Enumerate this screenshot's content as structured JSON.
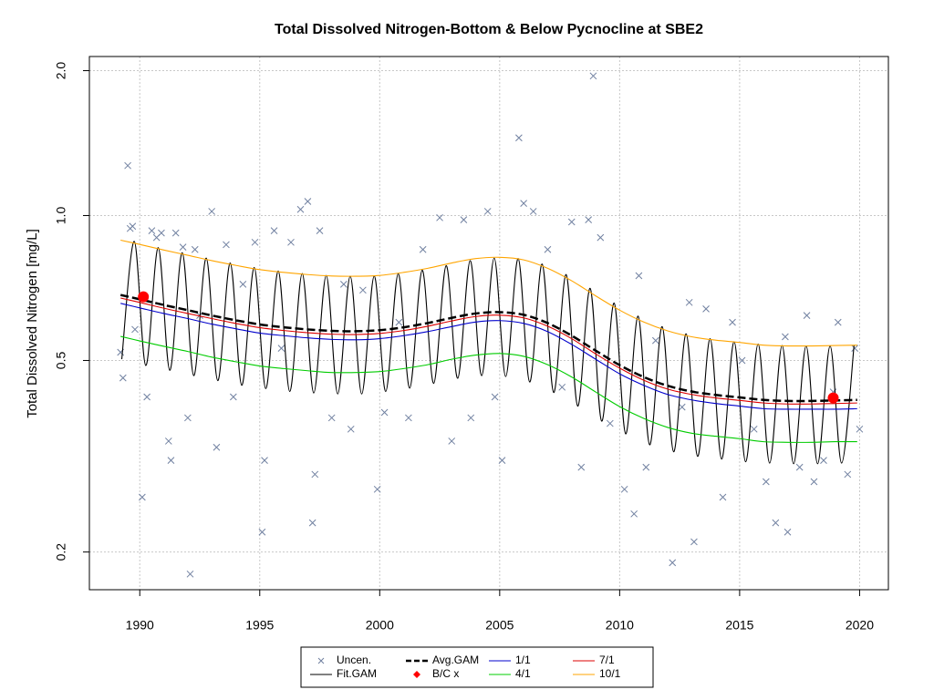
{
  "chart_data": {
    "type": "line",
    "title": "Total Dissolved Nitrogen-Bottom & Below Pycnocline at SBE2",
    "y_label": "Total Dissolved Nitrogen [mg/L]",
    "ylog": true,
    "grid": true,
    "legend": "bottom",
    "xlim": [
      1987.9,
      2021.2
    ],
    "xticks": [
      1990,
      1995,
      2000,
      2005,
      2010,
      2015,
      2020
    ],
    "ylim": [
      0.167,
      2.14
    ],
    "yticks": [
      0.2,
      0.5,
      {
        "value": 1,
        "label": "1.0"
      },
      {
        "value": 2,
        "label": "2.0"
      }
    ],
    "x": [
      1989.2,
      1990,
      1991,
      1992,
      1993,
      1994,
      1995,
      1996,
      1997,
      1998,
      1999,
      2000,
      2001,
      2002,
      2003,
      2004,
      2005,
      2006,
      2007,
      2008,
      2009,
      2010,
      2011,
      2012,
      2013,
      2014,
      2015,
      2016,
      2017,
      2018,
      2019,
      2019.9
    ],
    "series": [
      {
        "name": "Uncen.",
        "color": "#7080a0",
        "style": "points",
        "x": [
          1989.2,
          1989.3,
          1989.5,
          1989.6,
          1989.7,
          1989.8,
          1990.1,
          1990.3,
          1990.5,
          1990.7,
          1990.9,
          1991.2,
          1991.3,
          1991.5,
          1991.8,
          1992.0,
          1992.1,
          1992.3,
          1992.5,
          1993.0,
          1993.2,
          1993.6,
          1993.9,
          1994.3,
          1994.8,
          1995.1,
          1995.2,
          1995.6,
          1995.9,
          1996.3,
          1996.7,
          1997.0,
          1997.3,
          1997.2,
          1997.5,
          1998.0,
          1998.5,
          1998.8,
          1999.3,
          1999.9,
          2000.2,
          2000.8,
          2001.2,
          2001.8,
          2002.5,
          2003.0,
          2003.5,
          2003.8,
          2004.5,
          2004.8,
          2005.1,
          2005.8,
          2006.0,
          2006.4,
          2007.0,
          2007.6,
          2008.0,
          2008.4,
          2008.7,
          2008.9,
          2009.2,
          2009.6,
          2010.2,
          2010.6,
          2010.8,
          2011.1,
          2011.5,
          2012.2,
          2012.6,
          2012.9,
          2013.1,
          2013.6,
          2014.3,
          2014.7,
          2015.1,
          2015.6,
          2016.1,
          2016.5,
          2016.9,
          2017.0,
          2017.5,
          2017.8,
          2018.1,
          2018.5,
          2018.9,
          2019.1,
          2019.5,
          2019.8,
          2020.0
        ],
        "values": [
          0.52,
          0.46,
          1.27,
          0.94,
          0.95,
          0.58,
          0.26,
          0.42,
          0.93,
          0.9,
          0.92,
          0.34,
          0.31,
          0.92,
          0.86,
          0.38,
          0.18,
          0.85,
          0.62,
          1.02,
          0.33,
          0.87,
          0.42,
          0.72,
          0.88,
          0.22,
          0.31,
          0.93,
          0.53,
          0.88,
          1.03,
          1.07,
          0.29,
          0.23,
          0.93,
          0.38,
          0.72,
          0.36,
          0.7,
          0.27,
          0.39,
          0.6,
          0.38,
          0.85,
          0.99,
          0.34,
          0.98,
          0.38,
          1.02,
          0.42,
          0.31,
          1.45,
          1.06,
          1.02,
          0.85,
          0.44,
          0.97,
          0.3,
          0.98,
          1.95,
          0.9,
          0.37,
          0.27,
          0.24,
          0.75,
          0.3,
          0.55,
          0.19,
          0.4,
          0.66,
          0.21,
          0.64,
          0.26,
          0.6,
          0.5,
          0.36,
          0.28,
          0.23,
          0.56,
          0.22,
          0.3,
          0.62,
          0.28,
          0.31,
          0.43,
          0.6,
          0.29,
          0.53,
          0.36
        ]
      },
      {
        "name": "Fit.GAM",
        "color": "#000000",
        "style": "line",
        "x": [
          1989.25,
          1989.77,
          1990.25,
          1990.77,
          1991.25,
          1991.77,
          1992.25,
          1992.77,
          1993.25,
          1993.77,
          1994.25,
          1994.77,
          1995.25,
          1995.77,
          1996.25,
          1996.77,
          1997.25,
          1997.77,
          1998.25,
          1998.77,
          1999.25,
          1999.77,
          2000.25,
          2000.77,
          2001.25,
          2001.77,
          2002.25,
          2002.77,
          2003.25,
          2003.77,
          2004.25,
          2004.77,
          2005.25,
          2005.77,
          2006.25,
          2006.77,
          2007.25,
          2007.77,
          2008.25,
          2008.77,
          2009.25,
          2009.77,
          2010.25,
          2010.77,
          2011.25,
          2011.77,
          2012.25,
          2012.77,
          2013.25,
          2013.77,
          2014.25,
          2014.77,
          2015.25,
          2015.77,
          2016.25,
          2016.77,
          2017.25,
          2017.77,
          2018.25,
          2018.77,
          2019.25,
          2019.77
        ],
        "values": [
          0.503,
          0.884,
          0.488,
          0.858,
          0.477,
          0.837,
          0.465,
          0.816,
          0.454,
          0.797,
          0.444,
          0.78,
          0.437,
          0.767,
          0.431,
          0.758,
          0.428,
          0.751,
          0.426,
          0.748,
          0.426,
          0.749,
          0.431,
          0.757,
          0.438,
          0.77,
          0.448,
          0.787,
          0.459,
          0.806,
          0.465,
          0.816,
          0.463,
          0.814,
          0.451,
          0.793,
          0.429,
          0.754,
          0.402,
          0.706,
          0.374,
          0.658,
          0.352,
          0.618,
          0.334,
          0.588,
          0.323,
          0.568,
          0.316,
          0.555,
          0.312,
          0.547,
          0.308,
          0.541,
          0.306,
          0.537,
          0.305,
          0.536,
          0.305,
          0.536,
          0.306,
          0.538
        ]
      },
      {
        "name": "Avg.GAM",
        "color": "#000000",
        "style": "dashed",
        "values": [
          0.684,
          0.67,
          0.652,
          0.636,
          0.62,
          0.606,
          0.594,
          0.586,
          0.58,
          0.576,
          0.575,
          0.578,
          0.586,
          0.598,
          0.613,
          0.626,
          0.63,
          0.622,
          0.598,
          0.563,
          0.524,
          0.489,
          0.462,
          0.443,
          0.431,
          0.424,
          0.419,
          0.414,
          0.412,
          0.412,
          0.413,
          0.414
        ]
      },
      {
        "name": "B/C x",
        "color": "#ff0000",
        "style": "dots",
        "x": [
          1990.15,
          2018.9
        ],
        "values": [
          0.678,
          0.418
        ]
      },
      {
        "name": "1/1",
        "color": "#0000cc",
        "style": "line",
        "values": [
          0.657,
          0.643,
          0.626,
          0.611,
          0.595,
          0.582,
          0.57,
          0.563,
          0.557,
          0.553,
          0.552,
          0.555,
          0.563,
          0.574,
          0.588,
          0.601,
          0.605,
          0.597,
          0.574,
          0.54,
          0.503,
          0.469,
          0.444,
          0.425,
          0.414,
          0.407,
          0.402,
          0.397,
          0.396,
          0.396,
          0.396,
          0.397
        ]
      },
      {
        "name": "4/1",
        "color": "#00cc00",
        "style": "line",
        "values": [
          0.561,
          0.549,
          0.535,
          0.522,
          0.508,
          0.497,
          0.487,
          0.481,
          0.476,
          0.472,
          0.472,
          0.474,
          0.481,
          0.49,
          0.503,
          0.513,
          0.517,
          0.51,
          0.49,
          0.462,
          0.43,
          0.401,
          0.379,
          0.363,
          0.353,
          0.348,
          0.344,
          0.339,
          0.338,
          0.338,
          0.339,
          0.339
        ]
      },
      {
        "name": "7/1",
        "color": "#dd0000",
        "style": "line",
        "values": [
          0.674,
          0.66,
          0.642,
          0.626,
          0.611,
          0.597,
          0.585,
          0.577,
          0.571,
          0.567,
          0.566,
          0.569,
          0.577,
          0.589,
          0.604,
          0.617,
          0.621,
          0.613,
          0.589,
          0.555,
          0.516,
          0.482,
          0.455,
          0.436,
          0.425,
          0.418,
          0.413,
          0.408,
          0.406,
          0.406,
          0.407,
          0.408
        ]
      },
      {
        "name": "10/1",
        "color": "#ffa500",
        "style": "line",
        "values": [
          0.889,
          0.871,
          0.848,
          0.827,
          0.806,
          0.788,
          0.772,
          0.762,
          0.754,
          0.749,
          0.748,
          0.751,
          0.762,
          0.777,
          0.797,
          0.814,
          0.819,
          0.809,
          0.777,
          0.732,
          0.681,
          0.636,
          0.601,
          0.576,
          0.56,
          0.551,
          0.545,
          0.538,
          0.536,
          0.536,
          0.537,
          0.538
        ]
      }
    ]
  }
}
